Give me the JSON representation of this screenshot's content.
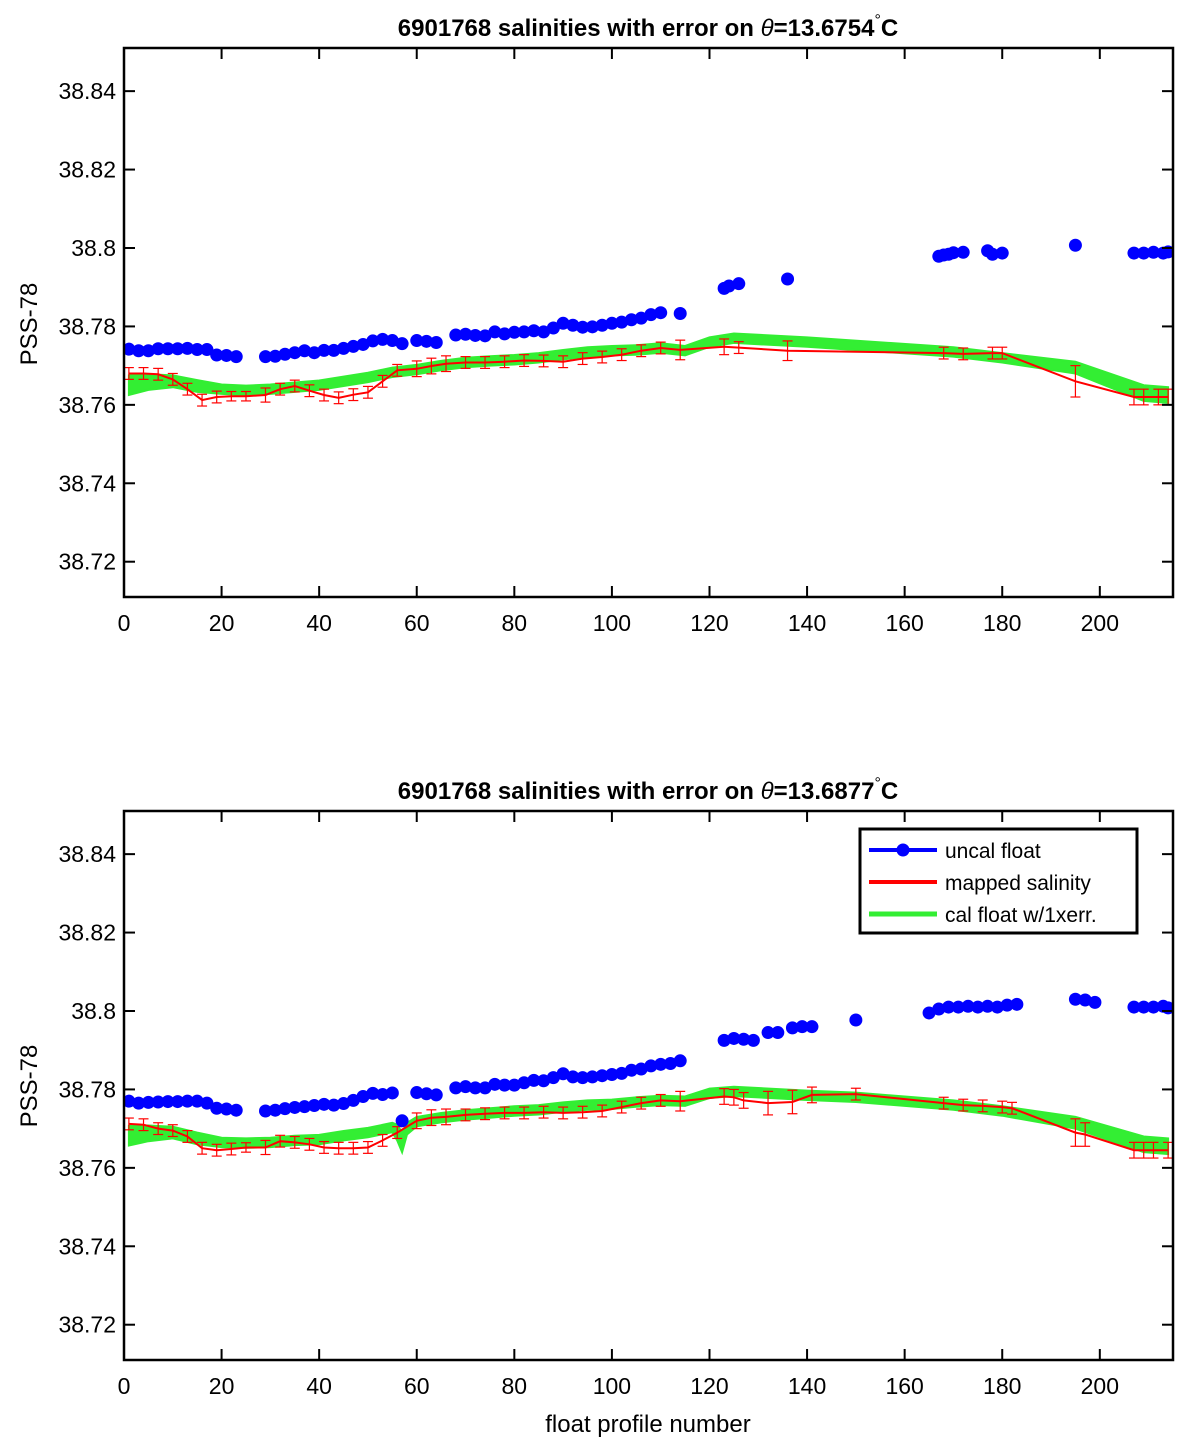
{
  "chart_data": [
    {
      "type": "scatter",
      "title": "6901768 salinities with error on θ=13.6754°C",
      "title_parts": {
        "prefix": "6901768 salinities with error on ",
        "symbol": "θ",
        "rest": "=13.6754",
        "degree": "°",
        "unit": "C"
      },
      "xlabel": "",
      "ylabel": "PSS-78",
      "xlim": [
        0,
        215
      ],
      "ylim": [
        38.711,
        38.851
      ],
      "xticks": [
        0,
        20,
        40,
        60,
        80,
        100,
        120,
        140,
        160,
        180,
        200
      ],
      "xtick_labels": [
        "0",
        "20",
        "40",
        "60",
        "80",
        "100",
        "120",
        "140",
        "160",
        "180",
        "200"
      ],
      "yticks": [
        38.72,
        38.74,
        38.76,
        38.78,
        38.8,
        38.82,
        38.84
      ],
      "ytick_labels": [
        "38.72",
        "38.74",
        "38.76",
        "38.78",
        "38.8",
        "38.82",
        "38.84"
      ],
      "grid": false,
      "legend": null,
      "series": [
        {
          "name": "uncal float",
          "color": "#0000ff",
          "style": "points",
          "x": [
            1,
            3,
            5,
            7,
            9,
            11,
            13,
            15,
            17,
            19,
            21,
            23,
            29,
            31,
            33,
            35,
            37,
            39,
            41,
            43,
            45,
            47,
            49,
            51,
            53,
            55,
            57,
            60,
            62,
            64,
            68,
            70,
            72,
            74,
            76,
            78,
            80,
            82,
            84,
            86,
            88,
            90,
            92,
            94,
            96,
            98,
            100,
            102,
            104,
            106,
            108,
            110,
            114,
            123,
            124,
            126,
            136,
            167,
            168,
            169,
            170,
            172,
            177,
            178,
            180,
            195,
            207,
            209,
            211,
            213,
            214
          ],
          "y": [
            38.7742,
            38.7738,
            38.7738,
            38.7743,
            38.7743,
            38.7743,
            38.7744,
            38.7741,
            38.7741,
            38.7727,
            38.7726,
            38.7723,
            38.7723,
            38.7724,
            38.7729,
            38.7733,
            38.7738,
            38.7733,
            38.7739,
            38.7739,
            38.7744,
            38.7749,
            38.7754,
            38.7763,
            38.7767,
            38.7764,
            38.7756,
            38.7764,
            38.7762,
            38.7759,
            38.7778,
            38.778,
            38.7777,
            38.7776,
            38.7786,
            38.7781,
            38.7785,
            38.7786,
            38.7789,
            38.7786,
            38.7796,
            38.7808,
            38.7803,
            38.7798,
            38.7799,
            38.7803,
            38.7808,
            38.7811,
            38.7817,
            38.7821,
            38.783,
            38.7835,
            38.7833,
            38.7897,
            38.7903,
            38.7909,
            38.7921,
            38.7979,
            38.7982,
            38.7984,
            38.7988,
            38.7989,
            38.7993,
            38.7984,
            38.7987,
            38.8007,
            38.7987,
            38.7987,
            38.7989,
            38.7987,
            38.799
          ]
        },
        {
          "name": "mapped salinity",
          "color": "#ff0000",
          "style": "line+errorbar",
          "x": [
            1,
            4,
            7,
            10,
            13,
            16,
            19,
            22,
            25,
            29,
            32,
            35,
            38,
            41,
            44,
            47,
            50,
            53,
            56,
            60,
            63,
            66,
            70,
            74,
            78,
            82,
            86,
            90,
            94,
            98,
            102,
            106,
            110,
            114,
            123,
            126,
            136,
            168,
            172,
            178,
            180,
            195,
            207,
            209,
            212,
            214
          ],
          "y": [
            38.768,
            38.768,
            38.7678,
            38.7665,
            38.764,
            38.7612,
            38.762,
            38.7622,
            38.7622,
            38.7625,
            38.764,
            38.7648,
            38.7636,
            38.7625,
            38.7618,
            38.7626,
            38.7632,
            38.766,
            38.7688,
            38.7692,
            38.7699,
            38.7705,
            38.7708,
            38.7708,
            38.771,
            38.7713,
            38.7712,
            38.771,
            38.7718,
            38.7722,
            38.7728,
            38.7738,
            38.7745,
            38.774,
            38.7748,
            38.7746,
            38.7738,
            38.7732,
            38.773,
            38.7732,
            38.7732,
            38.766,
            38.762,
            38.762,
            38.762,
            38.762
          ],
          "err": [
            0.0015,
            0.0015,
            0.0015,
            0.0015,
            0.0015,
            0.0015,
            0.0015,
            0.0012,
            0.0012,
            0.0018,
            0.0015,
            0.0015,
            0.0015,
            0.0015,
            0.0015,
            0.0015,
            0.0015,
            0.0015,
            0.0015,
            0.002,
            0.002,
            0.002,
            0.0015,
            0.0015,
            0.0015,
            0.0015,
            0.0015,
            0.0015,
            0.0015,
            0.0015,
            0.0015,
            0.0015,
            0.0015,
            0.0025,
            0.002,
            0.0015,
            0.0025,
            0.0015,
            0.0015,
            0.0015,
            0.0015,
            0.004,
            0.002,
            0.002,
            0.002,
            0.002
          ]
        },
        {
          "name": "cal float w/1xerr.",
          "color": "#33ee33",
          "style": "band",
          "x": [
            1,
            5,
            10,
            15,
            20,
            25,
            30,
            35,
            40,
            45,
            50,
            55,
            60,
            65,
            70,
            75,
            80,
            85,
            90,
            95,
            100,
            105,
            110,
            115,
            120,
            125,
            140,
            170,
            180,
            195,
            209,
            214
          ],
          "y": [
            38.765,
            38.7658,
            38.766,
            38.7648,
            38.764,
            38.7637,
            38.764,
            38.7645,
            38.765,
            38.766,
            38.767,
            38.7683,
            38.769,
            38.77,
            38.7708,
            38.7712,
            38.7715,
            38.772,
            38.7728,
            38.7735,
            38.7738,
            38.774,
            38.7745,
            38.7738,
            38.776,
            38.777,
            38.776,
            38.7735,
            38.772,
            38.7695,
            38.763,
            38.7625
          ],
          "halfwidth": [
            0.0025,
            0.002,
            0.0015,
            0.0015,
            0.0012,
            0.0012,
            0.0012,
            0.0012,
            0.0012,
            0.0012,
            0.0012,
            0.0012,
            0.0012,
            0.0012,
            0.0012,
            0.0012,
            0.0012,
            0.0012,
            0.0012,
            0.0012,
            0.0012,
            0.0012,
            0.0012,
            0.0012,
            0.0012,
            0.0012,
            0.0012,
            0.0012,
            0.0012,
            0.0015,
            0.002,
            0.002
          ]
        }
      ]
    },
    {
      "type": "scatter",
      "title": "6901768 salinities with error on θ=13.6877°C",
      "title_parts": {
        "prefix": "6901768 salinities with error on ",
        "symbol": "θ",
        "rest": "=13.6877",
        "degree": "°",
        "unit": "C"
      },
      "xlabel": "float profile number",
      "ylabel": "PSS-78",
      "xlim": [
        0,
        215
      ],
      "ylim": [
        38.711,
        38.851
      ],
      "xticks": [
        0,
        20,
        40,
        60,
        80,
        100,
        120,
        140,
        160,
        180,
        200
      ],
      "xtick_labels": [
        "0",
        "20",
        "40",
        "60",
        "80",
        "100",
        "120",
        "140",
        "160",
        "180",
        "200"
      ],
      "yticks": [
        38.72,
        38.74,
        38.76,
        38.78,
        38.8,
        38.82,
        38.84
      ],
      "ytick_labels": [
        "38.72",
        "38.74",
        "38.76",
        "38.78",
        "38.8",
        "38.82",
        "38.84"
      ],
      "grid": false,
      "legend": "top-right",
      "series": [
        {
          "name": "uncal float",
          "color": "#0000ff",
          "style": "points",
          "x": [
            1,
            3,
            5,
            7,
            9,
            11,
            13,
            15,
            17,
            19,
            21,
            23,
            29,
            31,
            33,
            35,
            37,
            39,
            41,
            43,
            45,
            47,
            49,
            51,
            53,
            55,
            57,
            60,
            62,
            64,
            68,
            70,
            72,
            74,
            76,
            78,
            80,
            82,
            84,
            86,
            88,
            90,
            92,
            94,
            96,
            98,
            100,
            102,
            104,
            106,
            108,
            110,
            112,
            114,
            123,
            125,
            127,
            129,
            132,
            134,
            137,
            139,
            141,
            150,
            165,
            167,
            169,
            171,
            173,
            175,
            177,
            179,
            181,
            183,
            195,
            197,
            199,
            207,
            209,
            211,
            213,
            214
          ],
          "y": [
            38.777,
            38.7765,
            38.7767,
            38.7768,
            38.7769,
            38.7769,
            38.777,
            38.777,
            38.7765,
            38.7752,
            38.775,
            38.7747,
            38.7745,
            38.7747,
            38.7751,
            38.7754,
            38.7756,
            38.7759,
            38.7762,
            38.776,
            38.7764,
            38.7772,
            38.7782,
            38.779,
            38.7787,
            38.7791,
            38.772,
            38.7792,
            38.7789,
            38.7786,
            38.7804,
            38.7807,
            38.7804,
            38.7804,
            38.7813,
            38.7811,
            38.7811,
            38.7817,
            38.7823,
            38.7822,
            38.783,
            38.784,
            38.7832,
            38.783,
            38.7832,
            38.7835,
            38.7838,
            38.7841,
            38.7849,
            38.7852,
            38.786,
            38.7864,
            38.7866,
            38.7873,
            38.7925,
            38.793,
            38.7928,
            38.7925,
            38.7945,
            38.7945,
            38.7957,
            38.796,
            38.796,
            38.7977,
            38.7995,
            38.8005,
            38.801,
            38.801,
            38.8012,
            38.801,
            38.8012,
            38.801,
            38.8015,
            38.8017,
            38.803,
            38.8028,
            38.8022,
            38.801,
            38.801,
            38.801,
            38.8012,
            38.8008
          ]
        },
        {
          "name": "mapped salinity",
          "color": "#ff0000",
          "style": "line+errorbar",
          "x": [
            1,
            4,
            7,
            10,
            13,
            16,
            19,
            22,
            25,
            29,
            32,
            35,
            38,
            41,
            44,
            47,
            50,
            53,
            56,
            60,
            63,
            66,
            70,
            74,
            78,
            82,
            86,
            90,
            94,
            98,
            102,
            106,
            110,
            114,
            123,
            125,
            127,
            132,
            137,
            141,
            150,
            168,
            172,
            176,
            180,
            182,
            195,
            197,
            207,
            209,
            211,
            214
          ],
          "y": [
            38.7712,
            38.771,
            38.77,
            38.7695,
            38.768,
            38.765,
            38.7645,
            38.7648,
            38.7652,
            38.7652,
            38.7668,
            38.7665,
            38.766,
            38.7652,
            38.765,
            38.765,
            38.7652,
            38.767,
            38.769,
            38.772,
            38.7728,
            38.773,
            38.7735,
            38.7738,
            38.774,
            38.774,
            38.7742,
            38.774,
            38.7742,
            38.7745,
            38.7755,
            38.7765,
            38.7772,
            38.777,
            38.7782,
            38.778,
            38.7772,
            38.7765,
            38.7768,
            38.7786,
            38.7788,
            38.7765,
            38.776,
            38.7758,
            38.7755,
            38.7752,
            38.769,
            38.7685,
            38.7645,
            38.7645,
            38.7645,
            38.7645
          ],
          "err": [
            0.0015,
            0.0015,
            0.0015,
            0.0015,
            0.0015,
            0.0015,
            0.0015,
            0.0015,
            0.0012,
            0.0018,
            0.0015,
            0.0015,
            0.0015,
            0.0015,
            0.0015,
            0.0015,
            0.0015,
            0.0015,
            0.0015,
            0.002,
            0.002,
            0.002,
            0.0015,
            0.0015,
            0.0015,
            0.0015,
            0.0015,
            0.0015,
            0.0015,
            0.0015,
            0.0015,
            0.0015,
            0.0015,
            0.0025,
            0.002,
            0.002,
            0.002,
            0.003,
            0.003,
            0.002,
            0.0015,
            0.0015,
            0.0015,
            0.0015,
            0.0015,
            0.0015,
            0.0035,
            0.003,
            0.002,
            0.002,
            0.002,
            0.002
          ]
        },
        {
          "name": "cal float w/1xerr.",
          "color": "#33ee33",
          "style": "band",
          "x": [
            1,
            5,
            10,
            15,
            20,
            25,
            30,
            35,
            40,
            45,
            50,
            55,
            56,
            57,
            58,
            60,
            65,
            70,
            75,
            80,
            85,
            90,
            95,
            100,
            105,
            110,
            115,
            120,
            125,
            140,
            150,
            170,
            180,
            195,
            209,
            214
          ],
          "y": [
            38.7682,
            38.7688,
            38.769,
            38.7675,
            38.7665,
            38.7663,
            38.7665,
            38.767,
            38.7672,
            38.7682,
            38.769,
            38.7703,
            38.769,
            38.7665,
            38.77,
            38.7718,
            38.7728,
            38.7735,
            38.774,
            38.7745,
            38.7748,
            38.7755,
            38.776,
            38.7762,
            38.7768,
            38.7772,
            38.777,
            38.779,
            38.7795,
            38.7785,
            38.778,
            38.776,
            38.7745,
            38.7715,
            38.766,
            38.7655
          ],
          "halfwidth": [
            0.0025,
            0.002,
            0.0015,
            0.0015,
            0.0012,
            0.0012,
            0.0012,
            0.0012,
            0.0012,
            0.0012,
            0.0012,
            0.0012,
            0.002,
            0.0025,
            0.0015,
            0.0012,
            0.0012,
            0.0012,
            0.0012,
            0.0012,
            0.0012,
            0.0012,
            0.0012,
            0.0012,
            0.0012,
            0.0012,
            0.0012,
            0.0012,
            0.0012,
            0.0012,
            0.0012,
            0.0012,
            0.0012,
            0.0015,
            0.002,
            0.002
          ]
        }
      ]
    }
  ]
}
